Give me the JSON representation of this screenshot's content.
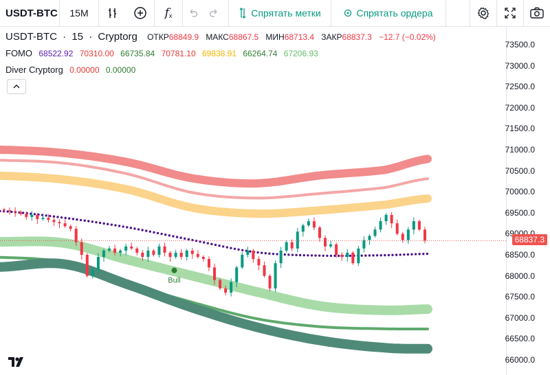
{
  "toolbar": {
    "symbol": "USDT-BTC",
    "interval": "15M",
    "hide_marks_label": "Спрятать метки",
    "hide_orders_label": "Спрятать ордера"
  },
  "legend": {
    "symbol": "USDT-BTC",
    "sep1": "·",
    "interval": "15",
    "sep2": "·",
    "source": "Cryptorg",
    "open_label": "ОТКР",
    "open_value": "68849.9",
    "high_label": "МАКС",
    "high_value": "68867.5",
    "low_label": "МИН",
    "low_value": "68713.4",
    "close_label": "ЗАКР",
    "close_value": "68837.3",
    "change": "−12.7 (−0.02%)",
    "fomo_name": "FOMO",
    "fomo_values": [
      "68522.92",
      "70310.00",
      "66735.84",
      "70781.10",
      "69838.91",
      "66264.74",
      "67206.93"
    ],
    "fomo_colors": [
      "#5b21b6",
      "#e53935",
      "#2e7d32",
      "#e53935",
      "#f4b400",
      "#2e7d32",
      "#66bb6a"
    ],
    "diver_name": "Diver Cryptorg",
    "diver_values": [
      "0.00000",
      "0.00000"
    ],
    "diver_colors": [
      "#e53935",
      "#2e7d32"
    ]
  },
  "price_axis": {
    "ticks": [
      "73500.0",
      "73000.0",
      "72500.0",
      "72000.0",
      "71500.0",
      "71000.0",
      "70500.0",
      "70000.0",
      "69500.0",
      "69000.0",
      "68500.0",
      "68000.0",
      "67500.0",
      "67000.0",
      "66500.0",
      "66000.0"
    ],
    "last_price": "68837.3"
  },
  "colors": {
    "up": "#089981",
    "down": "#f23645",
    "last_price": "#ef5350",
    "ma_dots": "#4a148c"
  },
  "chart_data": {
    "type": "line",
    "ylim": [
      65950,
      73700
    ],
    "last_price": 68837.3,
    "candle_closes": [
      69560,
      69540,
      69520,
      69470,
      69400,
      69450,
      69350,
      69380,
      69330,
      69280,
      69250,
      69180,
      69120,
      68800,
      68500,
      68000,
      68150,
      68450,
      68600,
      68650,
      68550,
      68600,
      68700,
      68650,
      68550,
      68450,
      68600,
      68500,
      68700,
      68550,
      68450,
      68550,
      68450,
      68600,
      68520,
      68450,
      68400,
      68200,
      67900,
      67700,
      67600,
      67850,
      68200,
      68500,
      68600,
      68400,
      68250,
      68000,
      67700,
      68300,
      68600,
      68800,
      68650,
      69050,
      69200,
      69300,
      69150,
      68900,
      68700,
      68750,
      68500,
      68450,
      68550,
      68300,
      68650,
      68850,
      68950,
      69100,
      69300,
      69450,
      69250,
      69000,
      68850,
      69100,
      69300,
      69100,
      68837
    ],
    "fomo_bands": [
      {
        "name": "70781.10",
        "color": "#f28b8b",
        "width": 12,
        "points": [
          [
            0,
            71000
          ],
          [
            15,
            70920
          ],
          [
            30,
            70700
          ],
          [
            45,
            70320
          ],
          [
            60,
            70200
          ],
          [
            75,
            70390
          ],
          [
            90,
            70520
          ],
          [
            100,
            70781
          ]
        ]
      },
      {
        "name": "70310.00",
        "color": "#f4a6a6",
        "width": 4,
        "points": [
          [
            0,
            70750
          ],
          [
            15,
            70680
          ],
          [
            30,
            70420
          ],
          [
            45,
            69980
          ],
          [
            60,
            69850
          ],
          [
            75,
            69960
          ],
          [
            90,
            70100
          ],
          [
            100,
            70310
          ]
        ]
      },
      {
        "name": "69838.91",
        "color": "#fbd38a",
        "width": 12,
        "points": [
          [
            0,
            70380
          ],
          [
            15,
            70290
          ],
          [
            30,
            70050
          ],
          [
            45,
            69620
          ],
          [
            60,
            69480
          ],
          [
            75,
            69560
          ],
          [
            90,
            69690
          ],
          [
            100,
            69839
          ]
        ]
      },
      {
        "name": "68522.92",
        "color": "#4a148c",
        "width": 0,
        "dots": true,
        "points": [
          [
            0,
            69540
          ],
          [
            15,
            69380
          ],
          [
            30,
            69150
          ],
          [
            45,
            68850
          ],
          [
            60,
            68560
          ],
          [
            75,
            68480
          ],
          [
            90,
            68490
          ],
          [
            100,
            68523
          ]
        ]
      },
      {
        "name": "67206.93",
        "color": "#a8dba8",
        "width": 14,
        "points": [
          [
            0,
            68810
          ],
          [
            15,
            68780
          ],
          [
            30,
            68380
          ],
          [
            45,
            68000
          ],
          [
            60,
            67620
          ],
          [
            75,
            67280
          ],
          [
            90,
            67180
          ],
          [
            100,
            67207
          ]
        ]
      },
      {
        "name": "66735.84",
        "color": "#5fa96d",
        "width": 4,
        "points": [
          [
            0,
            68440
          ],
          [
            15,
            68320
          ],
          [
            30,
            67820
          ],
          [
            45,
            67370
          ],
          [
            60,
            66980
          ],
          [
            75,
            66790
          ],
          [
            90,
            66740
          ],
          [
            100,
            66736
          ]
        ]
      },
      {
        "name": "66264.74",
        "color": "#4f8a78",
        "width": 14,
        "points": [
          [
            0,
            68210
          ],
          [
            15,
            68280
          ],
          [
            30,
            67790
          ],
          [
            45,
            67240
          ],
          [
            60,
            66780
          ],
          [
            75,
            66460
          ],
          [
            90,
            66290
          ],
          [
            100,
            66265
          ]
        ]
      }
    ],
    "marker": {
      "label": "Bull",
      "index": 27,
      "value": 68130
    }
  }
}
